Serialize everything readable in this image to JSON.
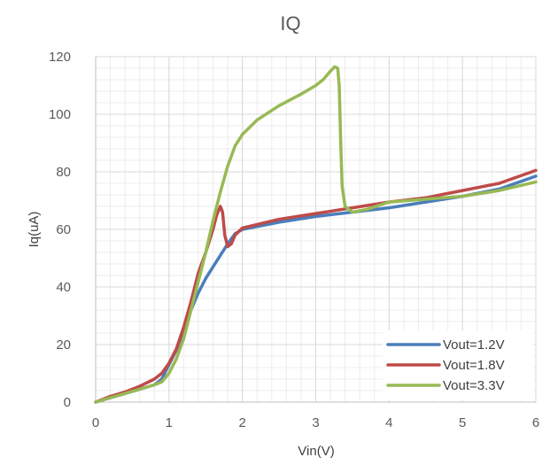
{
  "chart_data": {
    "type": "line",
    "title": "IQ",
    "xlabel": "Vin(V)",
    "ylabel": "Iq(uA)",
    "xlim": [
      0,
      6
    ],
    "ylim": [
      0,
      120
    ],
    "x_ticks": [
      0,
      1,
      2,
      3,
      4,
      5,
      6
    ],
    "y_ticks": [
      0,
      20,
      40,
      60,
      80,
      100,
      120
    ],
    "grid": true,
    "legend_position": "bottom-right",
    "series": [
      {
        "name": "Vout=1.2V",
        "color": "#4a7ebb",
        "points": [
          [
            0,
            0
          ],
          [
            0.2,
            1.5
          ],
          [
            0.4,
            3
          ],
          [
            0.6,
            4.5
          ],
          [
            0.8,
            6
          ],
          [
            0.9,
            8
          ],
          [
            1.0,
            13
          ],
          [
            1.1,
            18
          ],
          [
            1.2,
            24
          ],
          [
            1.3,
            32
          ],
          [
            1.4,
            38
          ],
          [
            1.5,
            43
          ],
          [
            1.6,
            47
          ],
          [
            1.7,
            51
          ],
          [
            1.8,
            55
          ],
          [
            1.9,
            58.5
          ],
          [
            2.0,
            60
          ],
          [
            2.5,
            62.5
          ],
          [
            3.0,
            64.5
          ],
          [
            3.5,
            66
          ],
          [
            4.0,
            67.5
          ],
          [
            4.5,
            69.5
          ],
          [
            5.0,
            71.5
          ],
          [
            5.5,
            74
          ],
          [
            6.0,
            78.5
          ]
        ]
      },
      {
        "name": "Vout=1.8V",
        "color": "#be4b48",
        "points": [
          [
            0,
            0
          ],
          [
            0.2,
            2
          ],
          [
            0.4,
            3.5
          ],
          [
            0.6,
            5.5
          ],
          [
            0.8,
            8
          ],
          [
            0.9,
            10
          ],
          [
            1.0,
            13.5
          ],
          [
            1.1,
            18.5
          ],
          [
            1.2,
            26
          ],
          [
            1.3,
            35
          ],
          [
            1.4,
            45
          ],
          [
            1.5,
            52
          ],
          [
            1.6,
            60
          ],
          [
            1.65,
            65
          ],
          [
            1.7,
            68
          ],
          [
            1.73,
            66
          ],
          [
            1.76,
            58
          ],
          [
            1.8,
            54
          ],
          [
            1.85,
            55
          ],
          [
            1.9,
            58
          ],
          [
            2.0,
            60.5
          ],
          [
            2.5,
            63.5
          ],
          [
            3.0,
            65.5
          ],
          [
            3.5,
            67.5
          ],
          [
            4.0,
            69.5
          ],
          [
            4.5,
            71
          ],
          [
            5.0,
            73.5
          ],
          [
            5.5,
            76
          ],
          [
            6.0,
            80.5
          ]
        ]
      },
      {
        "name": "Vout=3.3V",
        "color": "#98b954",
        "points": [
          [
            0,
            0
          ],
          [
            0.2,
            1.5
          ],
          [
            0.4,
            3
          ],
          [
            0.6,
            4.5
          ],
          [
            0.8,
            6
          ],
          [
            0.9,
            7
          ],
          [
            1.0,
            10
          ],
          [
            1.1,
            15
          ],
          [
            1.2,
            22
          ],
          [
            1.3,
            32
          ],
          [
            1.4,
            42
          ],
          [
            1.5,
            52
          ],
          [
            1.6,
            63
          ],
          [
            1.7,
            73
          ],
          [
            1.8,
            82
          ],
          [
            1.9,
            89
          ],
          [
            2.0,
            93
          ],
          [
            2.2,
            98
          ],
          [
            2.5,
            103
          ],
          [
            2.8,
            107
          ],
          [
            3.0,
            110
          ],
          [
            3.1,
            112
          ],
          [
            3.2,
            115
          ],
          [
            3.26,
            116.5
          ],
          [
            3.3,
            116
          ],
          [
            3.32,
            110
          ],
          [
            3.34,
            90
          ],
          [
            3.36,
            75
          ],
          [
            3.4,
            68
          ],
          [
            3.5,
            66
          ],
          [
            3.7,
            67
          ],
          [
            4.0,
            69.5
          ],
          [
            4.5,
            70.5
          ],
          [
            5.0,
            71.5
          ],
          [
            5.5,
            73.5
          ],
          [
            6.0,
            76.5
          ]
        ]
      }
    ]
  }
}
